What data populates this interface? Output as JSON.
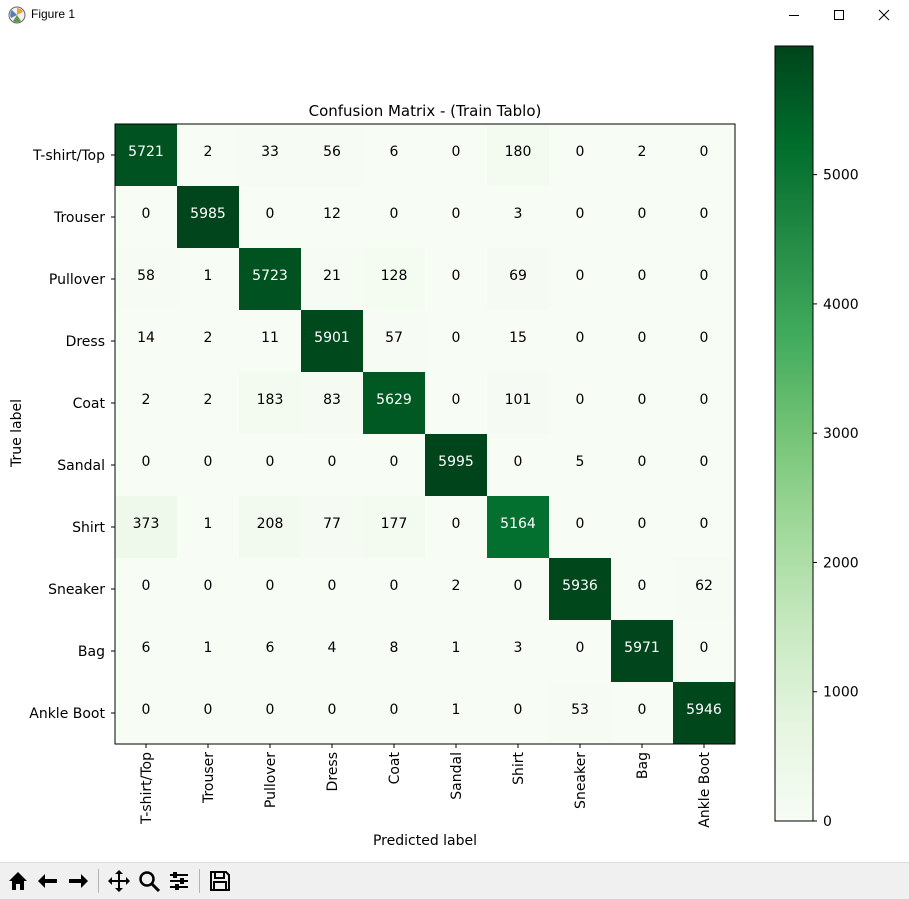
{
  "window": {
    "title": "Figure 1",
    "icon": "matplotlib-icon",
    "controls": [
      "minimize-icon",
      "maximize-icon",
      "close-icon"
    ]
  },
  "toolbar": {
    "buttons": [
      "home-icon",
      "back-arrow-icon",
      "forward-arrow-icon",
      "pan-icon",
      "zoom-icon",
      "configure-subplots-icon",
      "save-icon"
    ]
  },
  "chart_data": {
    "type": "heatmap",
    "title": "Confusion Matrix - (Train Tablo)",
    "xlabel": "Predicted label",
    "ylabel": "True label",
    "x_categories": [
      "T-shirt/Top",
      "Trouser",
      "Pullover",
      "Dress",
      "Coat",
      "Sandal",
      "Shirt",
      "Sneaker",
      "Bag",
      "Ankle Boot"
    ],
    "y_categories": [
      "T-shirt/Top",
      "Trouser",
      "Pullover",
      "Dress",
      "Coat",
      "Sandal",
      "Shirt",
      "Sneaker",
      "Bag",
      "Ankle Boot"
    ],
    "values": [
      [
        5721,
        2,
        33,
        56,
        6,
        0,
        180,
        0,
        2,
        0
      ],
      [
        0,
        5985,
        0,
        12,
        0,
        0,
        3,
        0,
        0,
        0
      ],
      [
        58,
        1,
        5723,
        21,
        128,
        0,
        69,
        0,
        0,
        0
      ],
      [
        14,
        2,
        11,
        5901,
        57,
        0,
        15,
        0,
        0,
        0
      ],
      [
        2,
        2,
        183,
        83,
        5629,
        0,
        101,
        0,
        0,
        0
      ],
      [
        0,
        0,
        0,
        0,
        0,
        5995,
        0,
        5,
        0,
        0
      ],
      [
        373,
        1,
        208,
        77,
        177,
        0,
        5164,
        0,
        0,
        0
      ],
      [
        0,
        0,
        0,
        0,
        0,
        2,
        0,
        5936,
        0,
        62
      ],
      [
        6,
        1,
        6,
        4,
        8,
        1,
        3,
        0,
        5971,
        0
      ],
      [
        0,
        0,
        0,
        0,
        0,
        1,
        0,
        53,
        0,
        5946
      ]
    ],
    "colormap": "Greens",
    "colorbar": {
      "range": [
        0,
        5995
      ],
      "ticks": [
        0,
        1000,
        2000,
        3000,
        4000,
        5000
      ]
    },
    "text_colors": {
      "dark_cell": "#ffffff",
      "light_cell": "#000000"
    }
  }
}
